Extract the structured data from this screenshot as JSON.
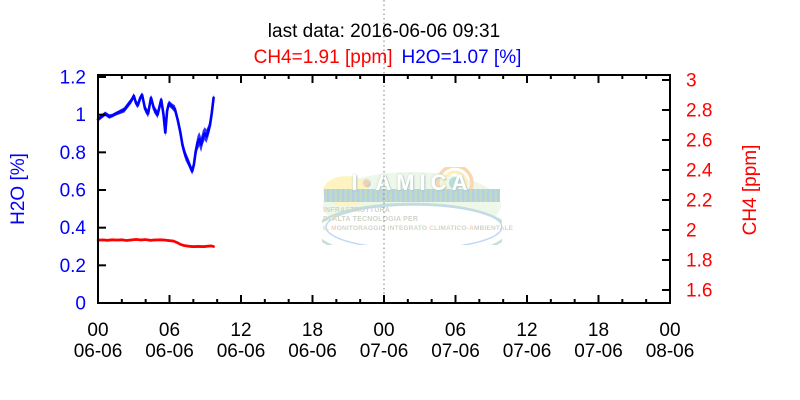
{
  "title": "last data: 2016-06-06 09:31",
  "legend": {
    "ch4": "CH4=1.91 [ppm]",
    "h2o": "H2O=1.07 [%]"
  },
  "colors": {
    "h2o": "#0000ff",
    "ch4": "#ff0000",
    "axis": "#000000",
    "grid": "#7f7f7f",
    "background": "#ffffff"
  },
  "chart_data": {
    "type": "line",
    "title": "last data: 2016-06-06 09:31",
    "annotations": [
      "CH4=1.91 [ppm]",
      "H2O=1.07 [%]"
    ],
    "x_axis": {
      "range_hours": [
        0,
        48
      ],
      "minor_tick_step_hours": 2,
      "grid_hours": [
        24
      ],
      "major_ticks": [
        {
          "hour": 0,
          "line1": "00",
          "line2": "06-06"
        },
        {
          "hour": 6,
          "line1": "06",
          "line2": "06-06"
        },
        {
          "hour": 12,
          "line1": "12",
          "line2": "06-06"
        },
        {
          "hour": 18,
          "line1": "18",
          "line2": "06-06"
        },
        {
          "hour": 24,
          "line1": "00",
          "line2": "07-06"
        },
        {
          "hour": 30,
          "line1": "06",
          "line2": "07-06"
        },
        {
          "hour": 36,
          "line1": "12",
          "line2": "07-06"
        },
        {
          "hour": 42,
          "line1": "18",
          "line2": "07-06"
        },
        {
          "hour": 48,
          "line1": "00",
          "line2": "08-06"
        }
      ]
    },
    "y_left": {
      "label": "H2O [%]",
      "color": "#0000ff",
      "ticks": [
        0,
        0.2,
        0.4,
        0.6,
        0.8,
        1.0,
        1.2
      ],
      "tick_labels": [
        "0",
        "0.2",
        "0.4",
        "0.6",
        "0.8",
        "1",
        "1.2"
      ]
    },
    "y_right": {
      "label": "CH4 [ppm]",
      "color": "#ff0000",
      "ticks": [
        1.6,
        1.8,
        2.0,
        2.2,
        2.4,
        2.6,
        2.8,
        3.0
      ],
      "tick_labels": [
        "1.6",
        "1.8",
        "2",
        "2.2",
        "2.4",
        "2.6",
        "2.8",
        "3"
      ]
    },
    "series": [
      {
        "name": "H2O [%]",
        "axis": "left",
        "color": "#0000ff",
        "last_value": 1.07,
        "points": [
          [
            0.0,
            0.975,
            0.012
          ],
          [
            0.3,
            0.99,
            0.012
          ],
          [
            0.6,
            1.005,
            0.012
          ],
          [
            0.95,
            0.99,
            0.012
          ],
          [
            1.2,
            0.995,
            0.01
          ],
          [
            1.5,
            1.005,
            0.01
          ],
          [
            1.85,
            1.015,
            0.012
          ],
          [
            2.2,
            1.025,
            0.014
          ],
          [
            2.5,
            1.05,
            0.015
          ],
          [
            2.8,
            1.075,
            0.015
          ],
          [
            3.0,
            1.1,
            0.015
          ],
          [
            3.2,
            1.06,
            0.016
          ],
          [
            3.35,
            1.05,
            0.016
          ],
          [
            3.55,
            1.09,
            0.015
          ],
          [
            3.7,
            1.105,
            0.015
          ],
          [
            3.95,
            1.03,
            0.018
          ],
          [
            4.2,
            1.005,
            0.02
          ],
          [
            4.45,
            1.09,
            0.016
          ],
          [
            4.7,
            1.03,
            0.02
          ],
          [
            5.0,
            1.0,
            0.02
          ],
          [
            5.3,
            1.08,
            0.016
          ],
          [
            5.5,
            1.0,
            0.022
          ],
          [
            5.65,
            0.905,
            0.022
          ],
          [
            5.8,
            1.02,
            0.02
          ],
          [
            5.95,
            1.06,
            0.016
          ],
          [
            6.2,
            1.045,
            0.016
          ],
          [
            6.45,
            1.03,
            0.02
          ],
          [
            6.7,
            0.97,
            0.025
          ],
          [
            6.9,
            0.91,
            0.028
          ],
          [
            7.1,
            0.835,
            0.028
          ],
          [
            7.35,
            0.78,
            0.025
          ],
          [
            7.6,
            0.745,
            0.022
          ],
          [
            7.9,
            0.7,
            0.018
          ],
          [
            8.05,
            0.735,
            0.03
          ],
          [
            8.2,
            0.805,
            0.035
          ],
          [
            8.35,
            0.85,
            0.038
          ],
          [
            8.5,
            0.87,
            0.038
          ],
          [
            8.65,
            0.84,
            0.04
          ],
          [
            8.8,
            0.88,
            0.038
          ],
          [
            8.95,
            0.9,
            0.034
          ],
          [
            9.1,
            0.885,
            0.036
          ],
          [
            9.25,
            0.91,
            0.032
          ],
          [
            9.4,
            0.945,
            0.03
          ],
          [
            9.55,
            1.01,
            0.028
          ],
          [
            9.7,
            1.09,
            0.02
          ]
        ]
      },
      {
        "name": "CH4 [ppm]",
        "axis": "right",
        "color": "#ff0000",
        "last_value": 1.91,
        "points": [
          [
            0.0,
            1.932,
            0.009
          ],
          [
            0.4,
            1.934,
            0.009
          ],
          [
            0.8,
            1.931,
            0.009
          ],
          [
            1.2,
            1.935,
            0.009
          ],
          [
            1.6,
            1.933,
            0.009
          ],
          [
            2.0,
            1.935,
            0.009
          ],
          [
            2.4,
            1.93,
            0.009
          ],
          [
            2.8,
            1.934,
            0.009
          ],
          [
            3.2,
            1.937,
            0.009
          ],
          [
            3.6,
            1.934,
            0.009
          ],
          [
            4.0,
            1.936,
            0.009
          ],
          [
            4.4,
            1.931,
            0.009
          ],
          [
            4.8,
            1.934,
            0.009
          ],
          [
            5.2,
            1.935,
            0.009
          ],
          [
            5.6,
            1.933,
            0.009
          ],
          [
            6.0,
            1.929,
            0.009
          ],
          [
            6.3,
            1.927,
            0.009
          ],
          [
            6.6,
            1.918,
            0.009
          ],
          [
            6.9,
            1.905,
            0.009
          ],
          [
            7.2,
            1.897,
            0.009
          ],
          [
            7.6,
            1.892,
            0.009
          ],
          [
            8.0,
            1.889,
            0.009
          ],
          [
            8.4,
            1.891,
            0.009
          ],
          [
            8.8,
            1.889,
            0.009
          ],
          [
            9.2,
            1.892,
            0.009
          ],
          [
            9.5,
            1.894,
            0.009
          ],
          [
            9.7,
            1.89,
            0.009
          ]
        ]
      }
    ]
  },
  "watermark": {
    "big": [
      {
        "t": "I"
      },
      {
        "t": "•",
        "hl": true
      },
      {
        "t": "AMICA"
      }
    ],
    "lines": [
      [
        {
          "t": "I",
          "hl": true
        },
        {
          "t": "NFRASTRUTTURA"
        }
      ],
      [
        {
          "t": "DI "
        },
        {
          "t": "A",
          "hl": true
        },
        {
          "t": "LTA TECNOLOGIA PER"
        }
      ],
      [
        {
          "t": "IL "
        },
        {
          "t": "M",
          "hl": true
        },
        {
          "t": "ONITORAGGIO "
        },
        {
          "t": "I",
          "hl": true
        },
        {
          "t": "NTEGRATO "
        },
        {
          "t": "C",
          "hl": true
        },
        {
          "t": "LIMATICO-"
        },
        {
          "t": "A",
          "hl": true
        },
        {
          "t": "MBIENTALE"
        }
      ]
    ]
  }
}
